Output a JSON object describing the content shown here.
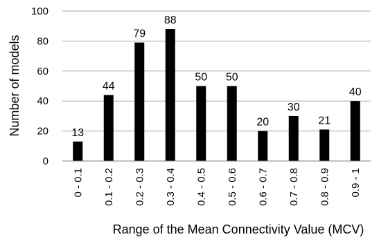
{
  "chart_data": {
    "type": "bar",
    "categories": [
      "0 - 0.1",
      "0.1 - 0.2",
      "0.2 - 0.3",
      "0.3 - 0.4",
      "0.4 - 0.5",
      "0.5 - 0.6",
      "0.6 - 0.7",
      "0.7 - 0.8",
      "0.8 - 0.9",
      "0.9 - 1"
    ],
    "values": [
      13,
      44,
      79,
      88,
      50,
      50,
      20,
      30,
      21,
      40
    ],
    "data_labels": [
      "13",
      "44",
      "79",
      "88",
      "50",
      "50",
      "20",
      "30",
      "21",
      "40"
    ],
    "xlabel": "Range of the Mean Connectivity Value (MCV)",
    "ylabel": "Number of models",
    "ylim": [
      0,
      100
    ],
    "yticks": [
      0,
      20,
      40,
      60,
      80,
      100
    ],
    "grid": true,
    "legend": "none",
    "colors": {
      "bar": "#000000",
      "grid": "#a6a6a6",
      "axis": "#7f7f7f"
    }
  }
}
